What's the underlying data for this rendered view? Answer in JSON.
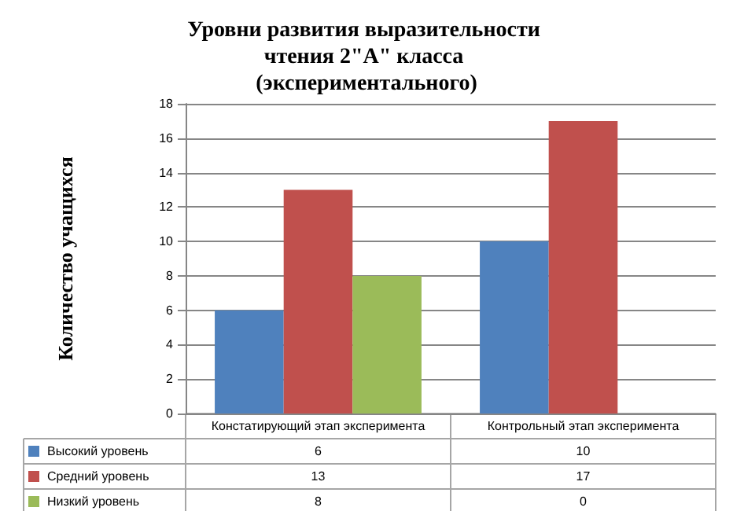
{
  "chart_data": {
    "type": "bar",
    "title": "Уровни развития выразительности чтения 2\"А\" класса (экспериментального)",
    "ylabel": "Количество учащихся",
    "categories": [
      "Констатирующий этап эксперимента",
      "Контрольный этап эксперимента"
    ],
    "series": [
      {
        "name": "Высокий уровень",
        "color": "#4f81bd",
        "values": [
          6,
          10
        ]
      },
      {
        "name": "Средний уровень",
        "color": "#c0504d",
        "values": [
          13,
          17
        ]
      },
      {
        "name": "Низкий уровень",
        "color": "#9bbb59",
        "values": [
          8,
          0
        ]
      }
    ],
    "ylim": [
      0,
      18
    ],
    "yticks": [
      0,
      2,
      4,
      6,
      8,
      10,
      12,
      14,
      16,
      18
    ],
    "grid": "y",
    "legend": "bottom left",
    "data_labels": true
  }
}
